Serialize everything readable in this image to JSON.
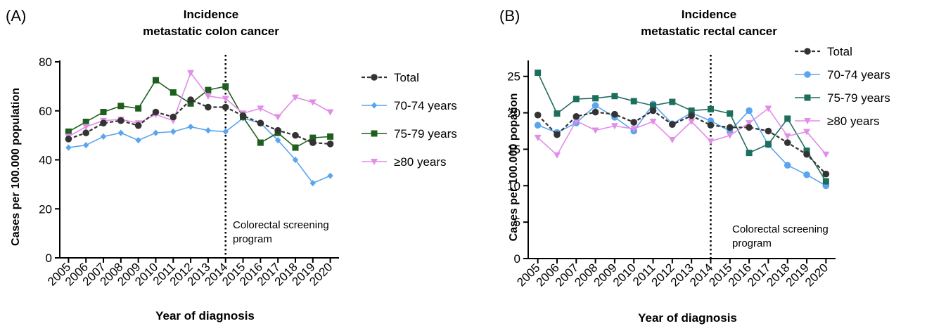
{
  "chart_data": [
    {
      "panel_label": "(A)",
      "type": "line",
      "title": "Incidence",
      "subtitle": "metastatic colon cancer",
      "xlabel": "Year of diagnosis",
      "ylabel": "Cases per 100.000 population",
      "ylim": [
        0,
        80
      ],
      "yticks": [
        0,
        20,
        40,
        60,
        80
      ],
      "x": [
        "2005",
        "2006",
        "2007",
        "2008",
        "2009",
        "2010",
        "2011",
        "2012",
        "2013",
        "2014",
        "2015",
        "2016",
        "2017",
        "2018",
        "2019",
        "2020"
      ],
      "annotation": {
        "x": "2014",
        "text_line1": "Colorectal screening",
        "text_line2": "program"
      },
      "grid": false,
      "legend_position": "right",
      "series": [
        {
          "name": "Total",
          "color": "#333333",
          "marker": "circle",
          "dashed": true,
          "values": [
            48.5,
            51,
            55,
            56,
            54,
            59.5,
            57.5,
            64.5,
            61.5,
            61.5,
            58,
            55,
            52,
            50,
            47,
            46.5
          ]
        },
        {
          "name": "70-74 years",
          "color": "#5aa5ee",
          "marker": "diamond",
          "dashed": false,
          "values": [
            45,
            46,
            49.5,
            51,
            48,
            51,
            51.5,
            53.5,
            52,
            51.5,
            57,
            55,
            48,
            40,
            30.5,
            33.5
          ]
        },
        {
          "name": "75-79 years",
          "color": "#1e5e1e",
          "marker": "square",
          "dashed": false,
          "values": [
            51.5,
            55.5,
            59.5,
            62,
            61,
            72.5,
            67.5,
            63,
            68.5,
            70,
            57.5,
            47,
            51,
            45,
            49,
            49.5
          ]
        },
        {
          "name": "≥80 years",
          "color": "#e28ee8",
          "marker": "triangle-down",
          "dashed": false,
          "values": [
            49.5,
            53.5,
            56,
            56.5,
            55,
            58.5,
            56,
            75.5,
            66,
            65,
            59,
            61,
            57.5,
            65.5,
            63.5,
            59.5
          ]
        }
      ]
    },
    {
      "panel_label": "(B)",
      "type": "line",
      "title": "Incidence",
      "subtitle": "metastatic rectal cancer",
      "xlabel": "Year of diagnosis",
      "ylabel": "Cases per 100.000 popation",
      "ylim": [
        0,
        27
      ],
      "yticks": [
        0,
        5,
        10,
        15,
        20,
        25
      ],
      "x": [
        "2005",
        "2006",
        "2007",
        "2008",
        "2009",
        "2010",
        "2011",
        "2012",
        "2013",
        "2014",
        "2015",
        "2016",
        "2017",
        "2018",
        "2019",
        "2020"
      ],
      "annotation": {
        "x": "2014",
        "text_line1": "Colorectal screening",
        "text_line2": "program"
      },
      "grid": false,
      "legend_position": "top-right",
      "series": [
        {
          "name": "Total",
          "color": "#333333",
          "marker": "circle",
          "dashed": true,
          "values": [
            19.7,
            17,
            19.5,
            20.1,
            19.8,
            18.7,
            20.3,
            18.4,
            19.6,
            18.3,
            18,
            18,
            17.5,
            15.9,
            14.3,
            11.6
          ]
        },
        {
          "name": "70-74 years",
          "color": "#5aa5ee",
          "marker": "circle",
          "dashed": false,
          "values": [
            18.3,
            17.3,
            18.6,
            21,
            19.4,
            17.5,
            21.2,
            18.5,
            20,
            18.9,
            17.5,
            20.3,
            15.6,
            12.8,
            11.5,
            10
          ]
        },
        {
          "name": "75-79 years",
          "color": "#1e6e5e",
          "marker": "square",
          "dashed": false,
          "values": [
            25.5,
            19.9,
            21.9,
            22,
            22.3,
            21.6,
            21,
            21.5,
            20.3,
            20.5,
            19.9,
            14.5,
            15.7,
            19.2,
            14.8,
            10.6
          ]
        },
        {
          "name": "≥80 years",
          "color": "#e28ee8",
          "marker": "triangle-down",
          "dashed": false,
          "values": [
            16.6,
            14.2,
            18.9,
            17.6,
            18.2,
            17.8,
            18.8,
            16.3,
            18.8,
            16.1,
            16.9,
            18.6,
            20.6,
            16.8,
            17.4,
            14.3
          ]
        }
      ]
    }
  ]
}
